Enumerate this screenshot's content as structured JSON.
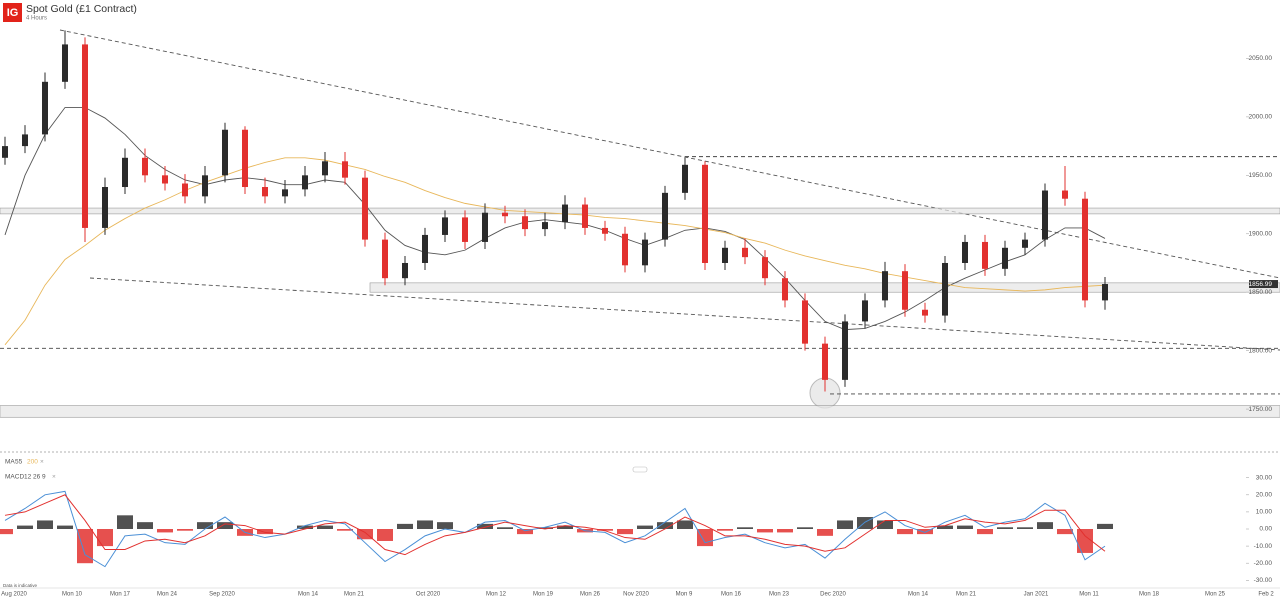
{
  "header": {
    "logo": "IG",
    "title": "Spot Gold (£1 Contract)",
    "subtitle": "4 Hours"
  },
  "chart_data": [
    {
      "type": "candlestick",
      "ylim": [
        1715,
        2100
      ],
      "yticks": [
        {
          "value": 1750,
          "label": "1750.00"
        },
        {
          "value": 1800,
          "label": "1800.00"
        },
        {
          "value": 1850,
          "label": "1850.00"
        },
        {
          "value": 1900,
          "label": "1900.00"
        },
        {
          "value": 1950,
          "label": "1950.00"
        },
        {
          "value": 2000,
          "label": "2000.00"
        },
        {
          "value": 2050,
          "label": "2050.00"
        }
      ],
      "up_color": "#2b2b2b",
      "down_color": "#e2312f",
      "open": [
        1965,
        1975,
        1985,
        2030,
        2062,
        1905,
        1940,
        1965,
        1950,
        1943,
        1932,
        1950,
        1989,
        1940,
        1932,
        1938,
        1950,
        1962,
        1948,
        1895,
        1862,
        1875,
        1899,
        1914,
        1893,
        1918,
        1915,
        1904,
        1910,
        1925,
        1905,
        1900,
        1873,
        1895,
        1935,
        1959,
        1875,
        1888,
        1880,
        1862,
        1843,
        1806,
        1775,
        1825,
        1843,
        1868,
        1835,
        1830,
        1875,
        1893,
        1870,
        1888,
        1895,
        1937,
        1930,
        1843
      ],
      "high": [
        1983,
        1993,
        2038,
        2074,
        2068,
        1948,
        1973,
        1973,
        1958,
        1951,
        1958,
        1995,
        1992,
        1948,
        1946,
        1958,
        1970,
        1970,
        1954,
        1901,
        1881,
        1905,
        1920,
        1920,
        1926,
        1924,
        1921,
        1918,
        1933,
        1931,
        1911,
        1906,
        1901,
        1941,
        1965,
        1962,
        1894,
        1896,
        1886,
        1868,
        1849,
        1812,
        1831,
        1849,
        1876,
        1874,
        1841,
        1881,
        1899,
        1899,
        1894,
        1901,
        1943,
        1958,
        1936,
        1863
      ],
      "low": [
        1959,
        1969,
        1979,
        2024,
        1893,
        1899,
        1934,
        1944,
        1937,
        1926,
        1926,
        1944,
        1934,
        1926,
        1926,
        1932,
        1944,
        1942,
        1889,
        1856,
        1856,
        1869,
        1893,
        1887,
        1887,
        1909,
        1898,
        1898,
        1904,
        1899,
        1894,
        1867,
        1867,
        1889,
        1929,
        1869,
        1869,
        1874,
        1856,
        1837,
        1800,
        1765,
        1769,
        1819,
        1837,
        1829,
        1824,
        1824,
        1869,
        1864,
        1864,
        1882,
        1889,
        1924,
        1837,
        1835
      ],
      "close": [
        1975,
        1985,
        2030,
        2062,
        1905,
        1940,
        1965,
        1950,
        1943,
        1932,
        1950,
        1989,
        1940,
        1932,
        1938,
        1950,
        1962,
        1948,
        1895,
        1862,
        1875,
        1899,
        1914,
        1893,
        1918,
        1915,
        1904,
        1910,
        1925,
        1905,
        1900,
        1873,
        1895,
        1935,
        1959,
        1875,
        1888,
        1880,
        1862,
        1843,
        1806,
        1775,
        1825,
        1843,
        1868,
        1835,
        1830,
        1875,
        1893,
        1870,
        1888,
        1895,
        1937,
        1930,
        1843,
        1857
      ],
      "indicator_label": "MA",
      "series": [
        {
          "name": "55",
          "color": "#555555",
          "values": [
            1899,
            1950,
            1985,
            2008,
            2008,
            1999,
            1985,
            1967,
            1955,
            1946,
            1942,
            1946,
            1948,
            1946,
            1942,
            1942,
            1946,
            1944,
            1925,
            1903,
            1890,
            1884,
            1882,
            1886,
            1896,
            1905,
            1910,
            1912,
            1910,
            1908,
            1903,
            1896,
            1890,
            1896,
            1903,
            1905,
            1902,
            1895,
            1879,
            1862,
            1843,
            1825,
            1818,
            1819,
            1825,
            1833,
            1843,
            1854,
            1862,
            1869,
            1876,
            1882,
            1895,
            1905,
            1905,
            1896
          ]
        },
        {
          "name": "200",
          "color": "#e8b75a",
          "values": [
            1805,
            1826,
            1856,
            1878,
            1890,
            1903,
            1913,
            1922,
            1929,
            1937,
            1944,
            1950,
            1956,
            1961,
            1965,
            1965,
            1963,
            1959,
            1955,
            1949,
            1944,
            1937,
            1931,
            1926,
            1923,
            1920,
            1919,
            1918,
            1917,
            1916,
            1914,
            1913,
            1911,
            1909,
            1907,
            1904,
            1901,
            1896,
            1892,
            1886,
            1881,
            1877,
            1873,
            1870,
            1866,
            1863,
            1860,
            1857,
            1854,
            1853,
            1852,
            1851,
            1852,
            1854,
            1855,
            1856
          ]
        }
      ],
      "levels": [
        1966,
        1802,
        1763
      ],
      "bands": [
        [
          1917,
          1922
        ],
        [
          1850,
          1858
        ],
        [
          1743,
          1753
        ]
      ],
      "last_price": 1856.99
    },
    {
      "type": "macd",
      "indicator_label": "MACD",
      "params": [
        12,
        26,
        9
      ],
      "ylim": [
        -34.5,
        34.5
      ],
      "yticks": [
        {
          "value": 30,
          "label": "30.00"
        },
        {
          "value": 20,
          "label": "20.00"
        },
        {
          "value": 10,
          "label": "10.00"
        },
        {
          "value": 0,
          "label": "0.00"
        },
        {
          "value": -10,
          "label": "-10.00"
        },
        {
          "value": -20,
          "label": "-20.00"
        },
        {
          "value": -30,
          "label": "-30.00"
        }
      ],
      "series": [
        {
          "color": "#4a8fd6",
          "values": [
            5,
            12,
            20,
            22,
            -15,
            -22,
            -4,
            -3,
            -8,
            -9,
            0,
            7,
            -2,
            -5,
            -3,
            2,
            5,
            3,
            -8,
            -19,
            -12,
            -4,
            0,
            -2,
            4,
            5,
            -1,
            1,
            4,
            -1,
            -2,
            -8,
            -4,
            4,
            12,
            -8,
            -5,
            -3,
            -8,
            -11,
            -9,
            -17,
            -6,
            4,
            10,
            2,
            -2,
            4,
            8,
            1,
            4,
            6,
            15,
            8,
            -18,
            -10
          ]
        },
        {
          "color": "#e2312f",
          "values": [
            8,
            10,
            15,
            20,
            5,
            -12,
            -12,
            -7,
            -6,
            -8,
            -4,
            3,
            2,
            -2,
            -3,
            0,
            3,
            4,
            -2,
            -12,
            -15,
            -9,
            -4,
            -2,
            1,
            4,
            2,
            0,
            2,
            1,
            -1,
            -5,
            -6,
            0,
            7,
            2,
            -4,
            -4,
            -6,
            -9,
            -10,
            -13,
            -11,
            -3,
            5,
            5,
            1,
            2,
            6,
            4,
            3,
            5,
            11,
            11,
            -4,
            -13
          ]
        }
      ],
      "histogram": [
        -3,
        2,
        5,
        2,
        -20,
        -10,
        8,
        4,
        -2,
        -1,
        4,
        4,
        -4,
        -3,
        0,
        2,
        2,
        -1,
        -6,
        -7,
        3,
        5,
        4,
        0,
        3,
        1,
        -3,
        1,
        2,
        -2,
        -1,
        -3,
        2,
        4,
        5,
        -10,
        -1,
        1,
        -2,
        -2,
        1,
        -4,
        5,
        7,
        5,
        -3,
        -3,
        2,
        2,
        -3,
        1,
        1,
        4,
        -3,
        -14,
        3
      ],
      "histogram_up_color": "#333333",
      "histogram_down_color": "#e2312f"
    }
  ],
  "x_axis_labels": [
    "Aug 2020",
    "Mon 10",
    "Mon 17",
    "Mon 24",
    "Sep 2020",
    "Mon 14",
    "Mon 21",
    "Oct 2020",
    "Mon 12",
    "Mon 19",
    "Mon 26",
    "Nov 2020",
    "Mon 9",
    "Mon 16",
    "Mon 23",
    "Dec 2020",
    "Mon 14",
    "Mon 21",
    "Jan 2021",
    "Mon 11",
    "Mon 18",
    "Mon 25",
    "Feb 2"
  ],
  "note": "Data is indicative"
}
